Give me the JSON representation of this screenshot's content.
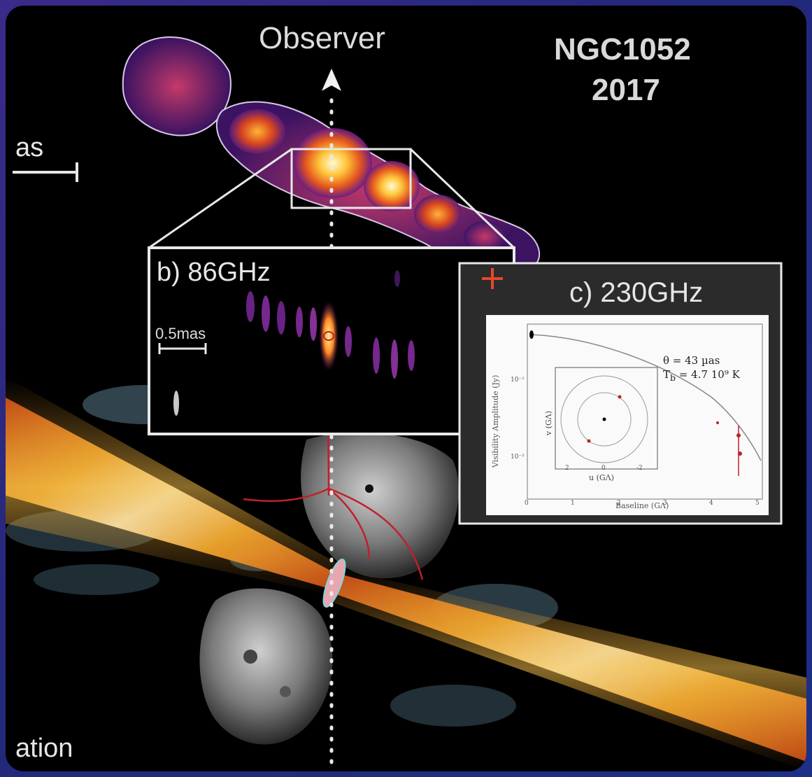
{
  "header": {
    "observer_label": "Observer",
    "title_line1": "NGC1052",
    "title_line2": "2017"
  },
  "left_labels": {
    "scale_fragment": "as",
    "bottom_fragment": "ation"
  },
  "panel_b": {
    "title": "b) 86GHz",
    "scale_label": "0.5mas"
  },
  "panel_c": {
    "title": "c) 230GHz",
    "plot": {
      "theta_text": "θ  = 43 µas",
      "tb_text": "T",
      "tb_sub": "b",
      "tb_rest": " = 4.7 10⁹ K",
      "x_axis_label": "Baseline (GΛ)",
      "y_axis_label": "Visibility Amplitude (Jy)",
      "inset_x_label": "u (GΛ)",
      "inset_y_label": "v (GΛ)",
      "x_ticks": [
        "0",
        "1",
        "2",
        "3",
        "4",
        "5"
      ],
      "y_ticks": [
        "10⁻¹",
        "10⁻²"
      ],
      "inset_x_ticks": [
        "2",
        "0",
        "-2"
      ]
    }
  },
  "colors": {
    "jet_hot": "#fff6b0",
    "jet_mid": "#ff9a1f",
    "jet_cool": "#7a1f8f",
    "marker_red": "#e5482b",
    "frame_white": "#e8e8e8",
    "panel_gray": "#2b2b2b"
  }
}
